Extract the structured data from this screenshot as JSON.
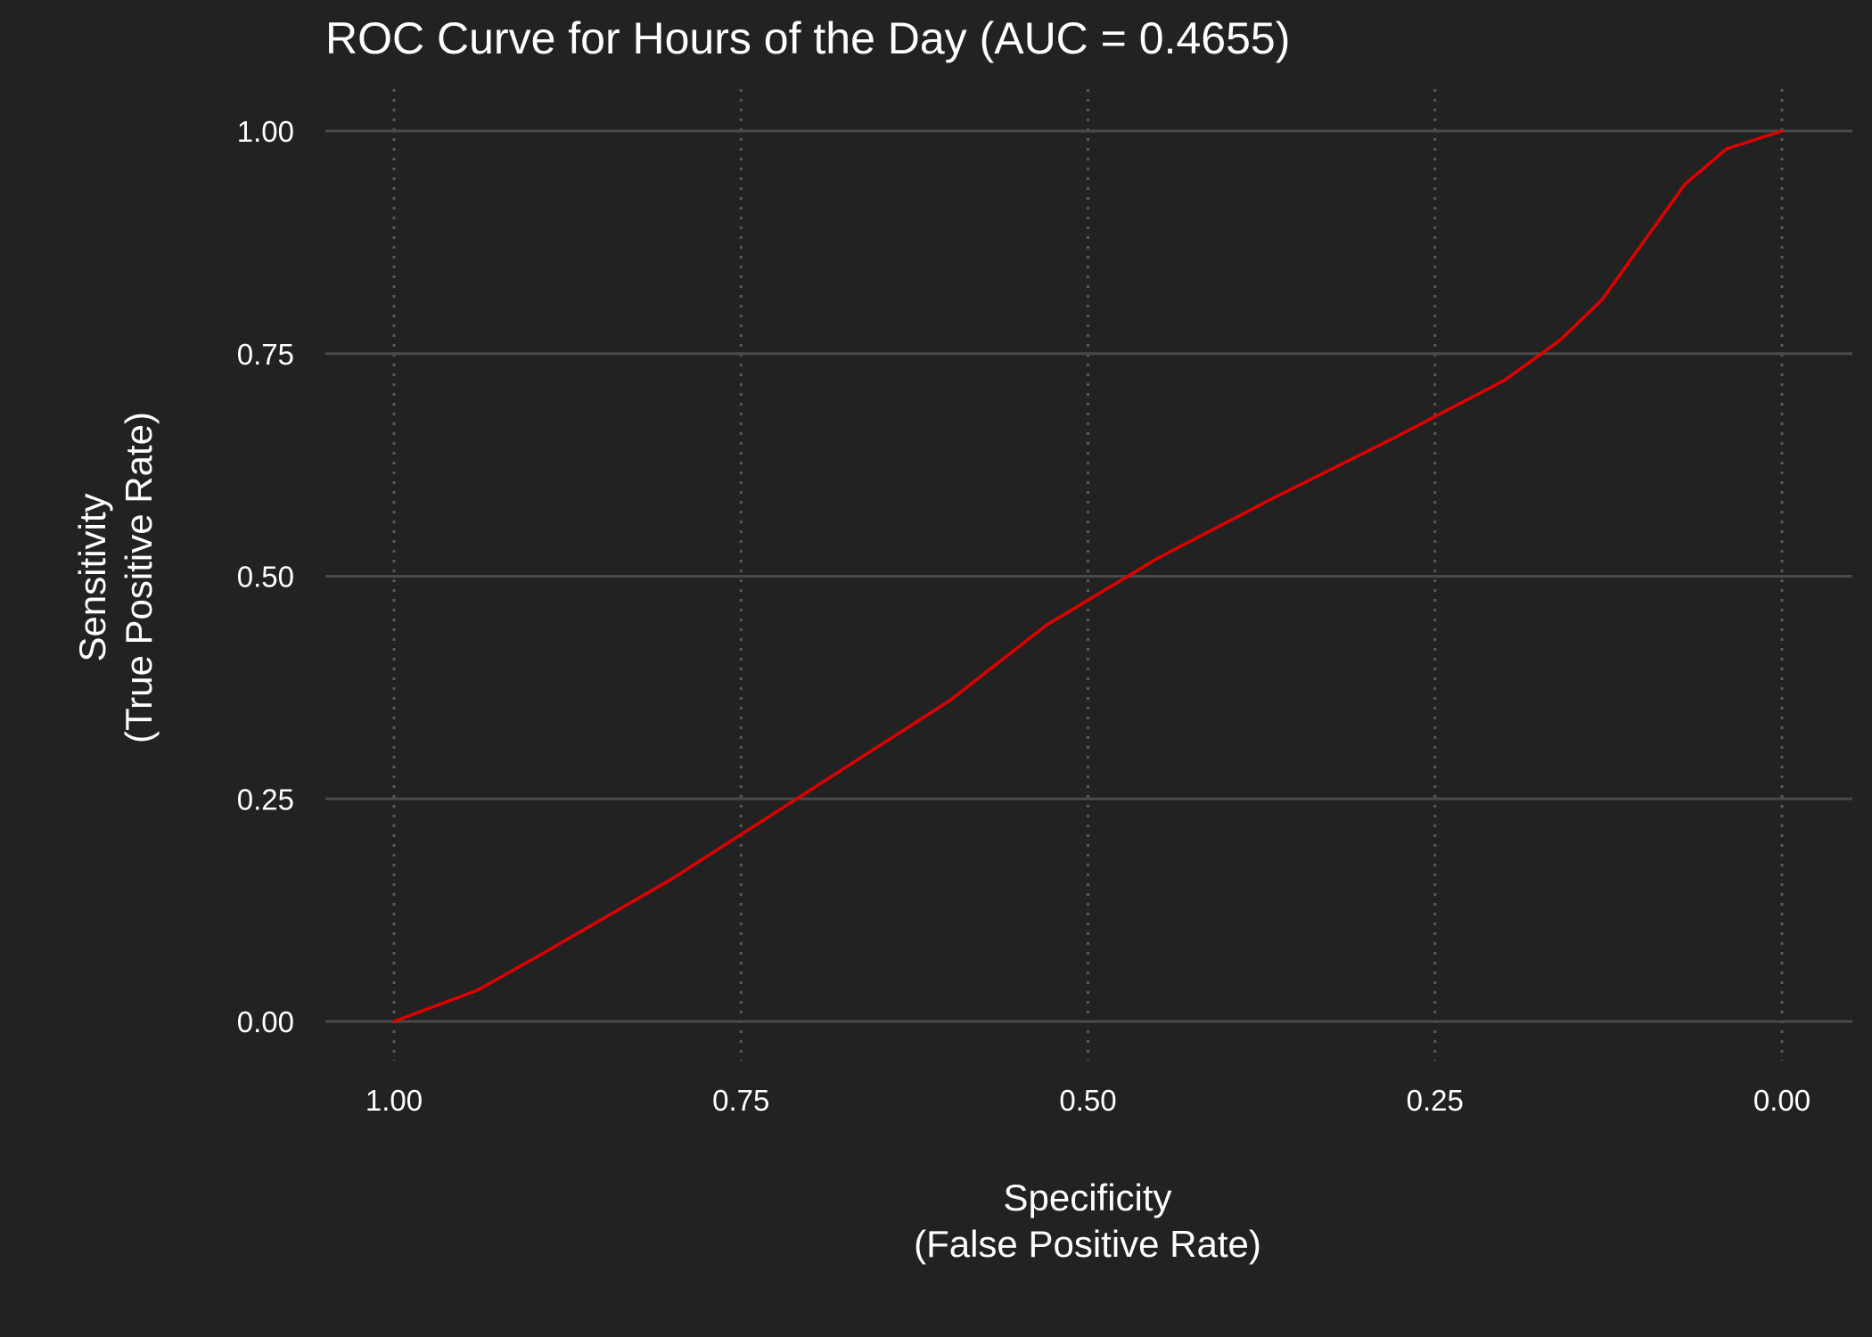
{
  "chart_data": {
    "type": "line",
    "title": "ROC Curve for Hours of the Day (AUC = 0.4655)",
    "xlabel": [
      "Specificity",
      "(False Positive Rate)"
    ],
    "ylabel": [
      "Sensitivity",
      "(True Positive Rate)"
    ],
    "xlim": [
      1.0,
      0.0
    ],
    "ylim": [
      0.0,
      1.0
    ],
    "x_axis_reversed": true,
    "x_ticks": [
      1.0,
      0.75,
      0.5,
      0.25,
      0.0
    ],
    "x_tick_labels": [
      "1.00",
      "0.75",
      "0.50",
      "0.25",
      "0.00"
    ],
    "y_ticks": [
      0.0,
      0.25,
      0.5,
      0.75,
      1.0
    ],
    "y_tick_labels": [
      "0.00",
      "0.25",
      "0.50",
      "0.75",
      "1.00"
    ],
    "grid": {
      "horizontal": "solid",
      "vertical": "dotted"
    },
    "colors": {
      "background": "#222222",
      "grid_major": "#4a4a4a",
      "grid_minor": "#5a5a5a",
      "line": "#e00000",
      "text": "#ffffff"
    },
    "series": [
      {
        "specificity": [
          1.0,
          0.94,
          0.9,
          0.85,
          0.8,
          0.75,
          0.7,
          0.65,
          0.6,
          0.53,
          0.45,
          0.37,
          0.28,
          0.2,
          0.16,
          0.13,
          0.1,
          0.07,
          0.04,
          0.0
        ],
        "sensitivity": [
          0.0,
          0.035,
          0.07,
          0.115,
          0.16,
          0.21,
          0.26,
          0.31,
          0.36,
          0.445,
          0.52,
          0.585,
          0.655,
          0.72,
          0.765,
          0.81,
          0.875,
          0.94,
          0.98,
          1.0
        ]
      }
    ]
  }
}
